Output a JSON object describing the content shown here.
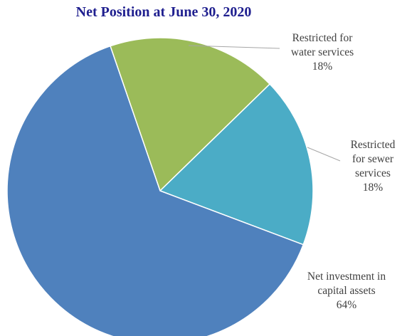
{
  "chart_data": {
    "type": "pie",
    "title": "Net Position at June 30, 2020",
    "slices": [
      {
        "name_lines": [
          "Restricted for",
          "water services"
        ],
        "value": 18,
        "value_label": "18%",
        "color": "#9bbb59"
      },
      {
        "name_lines": [
          "Restricted",
          "for sewer",
          "services"
        ],
        "value": 18,
        "value_label": "18%",
        "color": "#4bacc6"
      },
      {
        "name_lines": [
          "Net investment  in",
          "capital assets"
        ],
        "value": 64,
        "value_label": "64%",
        "color": "#4f81bd"
      }
    ],
    "slice_border_color": "#ffffff",
    "leader_line_color": "#a6a6a6"
  }
}
